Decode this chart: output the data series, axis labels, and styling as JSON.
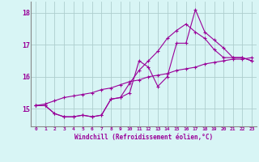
{
  "xlabel": "Windchill (Refroidissement éolien,°C)",
  "x_values": [
    0,
    1,
    2,
    3,
    4,
    5,
    6,
    7,
    8,
    9,
    10,
    11,
    12,
    13,
    14,
    15,
    16,
    17,
    18,
    19,
    20,
    21,
    22,
    23
  ],
  "line1": [
    15.1,
    15.1,
    14.85,
    14.75,
    14.75,
    14.8,
    14.75,
    14.8,
    15.3,
    15.35,
    15.5,
    16.5,
    16.3,
    15.7,
    16.0,
    17.05,
    17.05,
    18.1,
    17.4,
    17.15,
    16.9,
    16.6,
    16.6,
    16.5
  ],
  "line2": [
    15.1,
    15.1,
    14.85,
    14.75,
    14.75,
    14.8,
    14.75,
    14.8,
    15.3,
    15.35,
    15.8,
    16.2,
    16.5,
    16.8,
    17.2,
    17.45,
    17.65,
    17.4,
    17.2,
    16.85,
    16.6,
    16.6,
    16.6,
    16.5
  ],
  "line3": [
    15.1,
    15.15,
    15.25,
    15.35,
    15.4,
    15.45,
    15.5,
    15.6,
    15.65,
    15.75,
    15.85,
    15.9,
    16.0,
    16.05,
    16.1,
    16.2,
    16.25,
    16.3,
    16.4,
    16.45,
    16.5,
    16.55,
    16.55,
    16.6
  ],
  "line_color": "#990099",
  "bg_color": "#d8f5f5",
  "grid_color": "#aecece",
  "ylim": [
    14.45,
    18.35
  ],
  "yticks": [
    15,
    16,
    17,
    18
  ],
  "xticks": [
    0,
    1,
    2,
    3,
    4,
    5,
    6,
    7,
    8,
    9,
    10,
    11,
    12,
    13,
    14,
    15,
    16,
    17,
    18,
    19,
    20,
    21,
    22,
    23
  ],
  "xlim": [
    -0.5,
    23.5
  ]
}
